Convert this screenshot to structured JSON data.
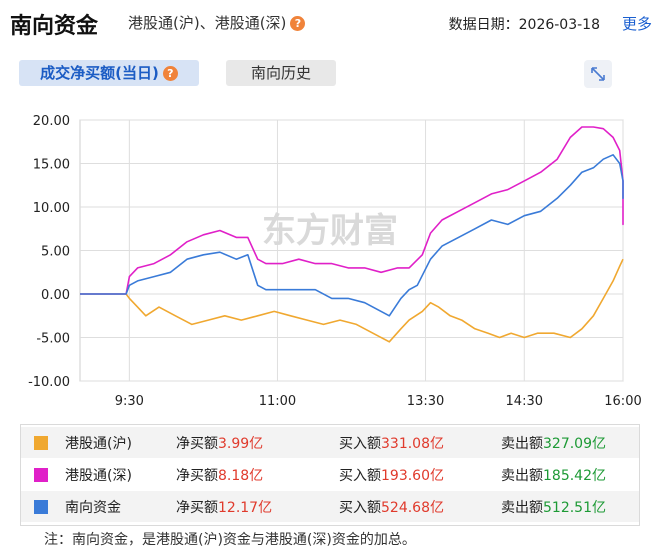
{
  "header": {
    "title": "南向资金",
    "subtitle": "港股通(沪)、港股通(深)",
    "help_icon": "question-icon",
    "date_label": "数据日期：",
    "date_value": "2026-03-18",
    "more_label": "更多"
  },
  "tabs": [
    {
      "label": "成交净买额(当日)",
      "active": true
    },
    {
      "label": "南向历史",
      "active": false
    }
  ],
  "expand_icon": "expand-arrows-icon",
  "watermark": "东方财富",
  "chart_data": {
    "type": "line",
    "ylim": [
      -10,
      20
    ],
    "yticks": [
      -10,
      -5,
      0,
      5,
      10,
      15,
      20
    ],
    "ytick_labels": [
      "-10.00",
      "-5.00",
      "0.00",
      "5.00",
      "10.00",
      "15.00",
      "20.00"
    ],
    "xlim": [
      0,
      330
    ],
    "xticks": [
      30,
      120,
      210,
      270,
      330
    ],
    "xtick_labels": [
      "9:30",
      "11:00",
      "13:30",
      "14:30",
      "16:00"
    ],
    "grid": true,
    "colors": {
      "港股通(沪)": "#f0a830",
      "港股通(深)": "#e020c8",
      "南向资金": "#3a7bd8"
    },
    "series": [
      {
        "name": "港股通(沪)",
        "color": "#f0a830",
        "points": [
          [
            0,
            0
          ],
          [
            28,
            0
          ],
          [
            30,
            -0.5
          ],
          [
            35,
            -1.5
          ],
          [
            40,
            -2.5
          ],
          [
            48,
            -1.5
          ],
          [
            58,
            -2.5
          ],
          [
            68,
            -3.5
          ],
          [
            78,
            -3
          ],
          [
            88,
            -2.5
          ],
          [
            98,
            -3
          ],
          [
            108,
            -2.5
          ],
          [
            118,
            -2
          ],
          [
            128,
            -2.5
          ],
          [
            138,
            -3
          ],
          [
            148,
            -3.5
          ],
          [
            158,
            -3
          ],
          [
            168,
            -3.5
          ],
          [
            178,
            -4.5
          ],
          [
            188,
            -5.5
          ],
          [
            195,
            -4
          ],
          [
            200,
            -3
          ],
          [
            208,
            -2
          ],
          [
            213,
            -1
          ],
          [
            218,
            -1.5
          ],
          [
            225,
            -2.5
          ],
          [
            232,
            -3
          ],
          [
            240,
            -4
          ],
          [
            248,
            -4.5
          ],
          [
            255,
            -5
          ],
          [
            262,
            -4.5
          ],
          [
            270,
            -5
          ],
          [
            278,
            -4.5
          ],
          [
            288,
            -4.5
          ],
          [
            298,
            -5
          ],
          [
            305,
            -4
          ],
          [
            312,
            -2.5
          ],
          [
            318,
            -0.5
          ],
          [
            324,
            1.5
          ],
          [
            328,
            3.2
          ],
          [
            330,
            4
          ]
        ]
      },
      {
        "name": "港股通(深)",
        "color": "#e020c8",
        "points": [
          [
            0,
            0
          ],
          [
            28,
            0
          ],
          [
            30,
            2
          ],
          [
            35,
            3
          ],
          [
            45,
            3.5
          ],
          [
            55,
            4.5
          ],
          [
            65,
            6
          ],
          [
            75,
            6.8
          ],
          [
            85,
            7.3
          ],
          [
            95,
            6.5
          ],
          [
            102,
            6.5
          ],
          [
            108,
            4
          ],
          [
            113,
            3.5
          ],
          [
            123,
            3.5
          ],
          [
            133,
            4
          ],
          [
            143,
            3.5
          ],
          [
            153,
            3.5
          ],
          [
            163,
            3
          ],
          [
            173,
            3
          ],
          [
            183,
            2.5
          ],
          [
            193,
            3
          ],
          [
            200,
            3
          ],
          [
            208,
            4.5
          ],
          [
            213,
            7
          ],
          [
            220,
            8.5
          ],
          [
            230,
            9.5
          ],
          [
            240,
            10.5
          ],
          [
            250,
            11.5
          ],
          [
            260,
            12
          ],
          [
            270,
            13
          ],
          [
            280,
            14
          ],
          [
            290,
            15.5
          ],
          [
            298,
            18
          ],
          [
            305,
            19.2
          ],
          [
            312,
            19.2
          ],
          [
            318,
            19
          ],
          [
            324,
            18
          ],
          [
            328,
            16.5
          ],
          [
            332,
            13
          ],
          [
            336,
            9.5
          ],
          [
            340,
            8
          ],
          [
            345,
            8.2
          ]
        ]
      },
      {
        "name": "南向资金",
        "color": "#3a7bd8",
        "points": [
          [
            0,
            0
          ],
          [
            28,
            0
          ],
          [
            30,
            1
          ],
          [
            35,
            1.5
          ],
          [
            45,
            2
          ],
          [
            55,
            2.5
          ],
          [
            65,
            4
          ],
          [
            75,
            4.5
          ],
          [
            85,
            4.8
          ],
          [
            95,
            4
          ],
          [
            102,
            4.5
          ],
          [
            108,
            1
          ],
          [
            113,
            0.5
          ],
          [
            123,
            0.5
          ],
          [
            133,
            0.5
          ],
          [
            143,
            0.5
          ],
          [
            153,
            -0.5
          ],
          [
            163,
            -0.5
          ],
          [
            173,
            -1
          ],
          [
            183,
            -2
          ],
          [
            188,
            -2.5
          ],
          [
            195,
            -0.5
          ],
          [
            200,
            0.5
          ],
          [
            205,
            1
          ],
          [
            213,
            4
          ],
          [
            220,
            5.5
          ],
          [
            230,
            6.5
          ],
          [
            240,
            7.5
          ],
          [
            250,
            8.5
          ],
          [
            260,
            8
          ],
          [
            270,
            9
          ],
          [
            280,
            9.5
          ],
          [
            290,
            11
          ],
          [
            298,
            12.5
          ],
          [
            305,
            14
          ],
          [
            312,
            14.5
          ],
          [
            318,
            15.5
          ],
          [
            324,
            16
          ],
          [
            328,
            15
          ],
          [
            332,
            13
          ],
          [
            336,
            11
          ],
          [
            340,
            11
          ],
          [
            342,
            11.8
          ],
          [
            345,
            12.2
          ]
        ]
      }
    ]
  },
  "legend": [
    {
      "name": "港股通(沪)",
      "color": "#f0a830",
      "net_label": "净买额",
      "net_value": "3.99亿",
      "buy_label": "买入额",
      "buy_value": "331.08亿",
      "sell_label": "卖出额",
      "sell_value": "327.09亿"
    },
    {
      "name": "港股通(深)",
      "color": "#e020c8",
      "net_label": "净买额",
      "net_value": "8.18亿",
      "buy_label": "买入额",
      "buy_value": "193.60亿",
      "sell_label": "卖出额",
      "sell_value": "185.42亿"
    },
    {
      "name": "南向资金",
      "color": "#3a7bd8",
      "net_label": "净买额",
      "net_value": "12.17亿",
      "buy_label": "买入额",
      "buy_value": "524.68亿",
      "sell_label": "卖出额",
      "sell_value": "512.51亿"
    }
  ],
  "note": "注：南向资金，是港股通(沪)资金与港股通(深)资金的加总。"
}
